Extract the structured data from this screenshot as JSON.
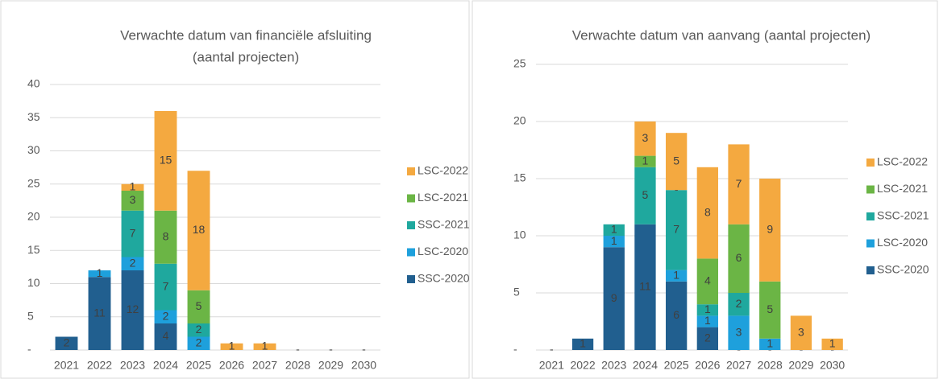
{
  "chart_data": [
    {
      "type": "bar",
      "stacked": true,
      "title": [
        "Verwachte datum van financiële afsluiting",
        "(aantal projecten)"
      ],
      "categories": [
        "2021",
        "2022",
        "2023",
        "2024",
        "2025",
        "2026",
        "2027",
        "2028",
        "2029",
        "2030"
      ],
      "series": [
        {
          "name": "SSC-2020",
          "color": "#215f8f",
          "values": [
            2,
            11,
            12,
            4,
            null,
            null,
            null,
            0,
            0,
            0
          ],
          "value_labels": [
            null,
            null,
            null,
            null,
            null,
            null,
            null,
            "-",
            "-",
            "-"
          ]
        },
        {
          "name": "LSC-2020",
          "color": "#1ea0dc",
          "values": [
            null,
            1,
            2,
            2,
            2,
            null,
            null,
            null,
            null,
            null
          ]
        },
        {
          "name": "SSC-2021",
          "color": "#1fa89e",
          "values": [
            null,
            null,
            7,
            7,
            2,
            null,
            null,
            null,
            null,
            null
          ]
        },
        {
          "name": "LSC-2021",
          "color": "#6bb545",
          "values": [
            null,
            null,
            3,
            8,
            5,
            null,
            null,
            null,
            null,
            null
          ]
        },
        {
          "name": "LSC-2022",
          "color": "#f4a940",
          "values": [
            null,
            null,
            1,
            15,
            18,
            1,
            1,
            null,
            null,
            null
          ]
        }
      ],
      "ylim": [
        0,
        40
      ],
      "yticks": [
        {
          "value": 0,
          "label": "-"
        },
        5,
        10,
        15,
        20,
        25,
        30,
        35,
        40
      ],
      "grid": true,
      "legend": "right"
    },
    {
      "type": "bar",
      "stacked": true,
      "title": [
        "Verwachte datum van aanvang (aantal projecten)"
      ],
      "categories": [
        "2021",
        "2022",
        "2023",
        "2024",
        "2025",
        "2026",
        "2027",
        "2028",
        "2029",
        "2030"
      ],
      "series": [
        {
          "name": "SSC-2020",
          "color": "#215f8f",
          "values": [
            0,
            1,
            9,
            11,
            6,
            2,
            0,
            0,
            0,
            0
          ],
          "value_labels": [
            "-",
            null,
            null,
            null,
            null,
            null,
            "-",
            "-",
            "-",
            "-"
          ]
        },
        {
          "name": "LSC-2020",
          "color": "#1ea0dc",
          "values": [
            null,
            null,
            1,
            null,
            1,
            1,
            3,
            1,
            null,
            null
          ]
        },
        {
          "name": "SSC-2021",
          "color": "#1fa89e",
          "values": [
            null,
            null,
            1,
            5,
            7,
            1,
            2,
            null,
            null,
            null
          ]
        },
        {
          "name": "LSC-2021",
          "color": "#6bb545",
          "values": [
            null,
            null,
            null,
            1,
            0,
            4,
            6,
            5,
            null,
            null
          ],
          "value_labels": [
            null,
            null,
            null,
            null,
            "-",
            null,
            null,
            null,
            null,
            null
          ]
        },
        {
          "name": "LSC-2022",
          "color": "#f4a940",
          "values": [
            null,
            null,
            null,
            3,
            5,
            8,
            7,
            9,
            3,
            1
          ]
        }
      ],
      "ylim": [
        0,
        25
      ],
      "yticks": [
        {
          "value": 0,
          "label": "-"
        },
        5,
        10,
        15,
        20,
        25
      ],
      "grid": true,
      "legend": "right"
    }
  ]
}
